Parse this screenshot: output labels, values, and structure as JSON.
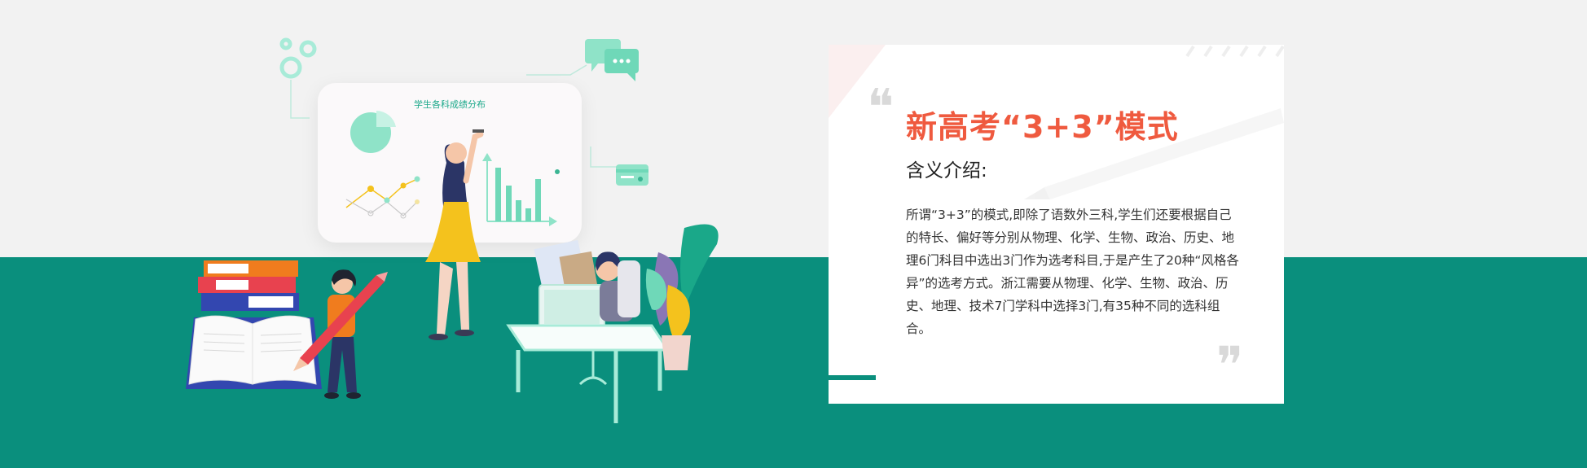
{
  "illustration": {
    "board_title": "学生各科成绩分布"
  },
  "card": {
    "headline": "新高考“3+3”模式",
    "subheading": "含义介绍:",
    "body": "所谓“3+3”的模式,即除了语数外三科,学生们还要根据自己的特长、偏好等分别从物理、化学、生物、政治、历史、地理6门科目中选出3门作为选考科目,于是产生了20种“风格各异”的选考方式。浙江需要从物理、化学、生物、政治、历史、地理、技术7门学科中选择3门,有35种不同的选科组合。",
    "quote_open": "❝",
    "quote_close": "❞"
  },
  "colors": {
    "teal": "#0a8f7d",
    "accent_red": "#ef5a3f",
    "light_bg": "#f2f2f2",
    "mint": "#7fe0c4",
    "yellow": "#f4c21d",
    "navy": "#2b3566"
  },
  "icons": [
    "gear-icon",
    "chat-bubble-icon",
    "credit-card-icon",
    "pie-chart-icon",
    "bar-chart-icon",
    "line-chart-icon",
    "pencil-icon",
    "book-icon",
    "plant-icon",
    "computer-icon"
  ]
}
